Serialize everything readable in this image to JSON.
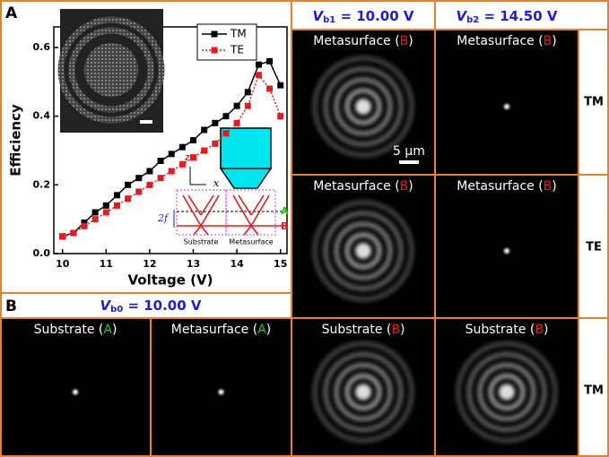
{
  "panel_a": {
    "label": "A"
  },
  "chart_data": {
    "type": "line",
    "xlabel": "Voltage (V)",
    "ylabel": "Efficiency",
    "x": [
      10,
      10.25,
      10.5,
      10.75,
      11,
      11.25,
      11.5,
      11.75,
      12,
      12.25,
      12.5,
      12.75,
      13,
      13.25,
      13.5,
      13.75,
      14,
      14.25,
      14.5,
      14.75,
      15
    ],
    "series": [
      {
        "name": "TM",
        "color": "#000000",
        "dash": "solid",
        "values": [
          0.05,
          0.06,
          0.09,
          0.12,
          0.14,
          0.17,
          0.2,
          0.22,
          0.24,
          0.27,
          0.29,
          0.31,
          0.33,
          0.36,
          0.38,
          0.4,
          0.43,
          0.47,
          0.55,
          0.56,
          0.49
        ]
      },
      {
        "name": "TE",
        "color": "#e8191e",
        "dash": "dotted",
        "values": [
          0.05,
          0.06,
          0.08,
          0.1,
          0.12,
          0.14,
          0.16,
          0.18,
          0.2,
          0.22,
          0.24,
          0.26,
          0.28,
          0.3,
          0.32,
          0.35,
          0.38,
          0.43,
          0.52,
          0.48,
          0.4
        ]
      }
    ],
    "xlim": [
      9.8,
      15.15
    ],
    "ylim": [
      0,
      0.66
    ],
    "xticks": [
      10,
      11,
      12,
      13,
      14,
      15
    ],
    "yticks": [
      {
        "value": 0,
        "label": "0.0"
      },
      0.2,
      0.4,
      0.6
    ],
    "legend": "upper right"
  },
  "inset": {
    "axis_z": "z",
    "axis_x": "x",
    "focal": "2f",
    "substrate": "Substrate",
    "metasurface": "Metasurface",
    "plane_a": "A",
    "plane_b": "B"
  },
  "panel_b": {
    "label": "B",
    "header": {
      "symbol": "V",
      "sub": "b0",
      "text": " = 10.00 V",
      "color": "#1d1dd8"
    }
  },
  "headers": [
    {
      "symbol": "V",
      "sub": "b1",
      "text": " = 10.00 V",
      "color": "#1d1dd8"
    },
    {
      "symbol": "V",
      "sub": "b2",
      "text": " = 14.50 V",
      "color": "#1d1dd8"
    }
  ],
  "row_labels": [
    "TM",
    "TE",
    "TM"
  ],
  "scale_bar": "5 μm",
  "images": [
    {
      "parts": [
        "Metasurface (",
        "B",
        ")"
      ],
      "letter_color": "#e8191e"
    },
    {
      "parts": [
        "Metasurface (",
        "B",
        ")"
      ],
      "letter_color": "#e8191e"
    },
    {
      "parts": [
        "Metasurface (",
        "B",
        ")"
      ],
      "letter_color": "#e8191e"
    },
    {
      "parts": [
        "Metasurface (",
        "B",
        ")"
      ],
      "letter_color": "#e8191e"
    },
    {
      "parts": [
        "Substrate (",
        "B",
        ")"
      ],
      "letter_color": "#e8191e"
    },
    {
      "parts": [
        "Substrate (",
        "B",
        ")"
      ],
      "letter_color": "#e8191e"
    },
    {
      "parts": [
        "Substrate (",
        "A",
        ")"
      ],
      "letter_color": "#22c422"
    },
    {
      "parts": [
        "Metasurface (",
        "A",
        ")"
      ],
      "letter_color": "#22c422"
    }
  ]
}
